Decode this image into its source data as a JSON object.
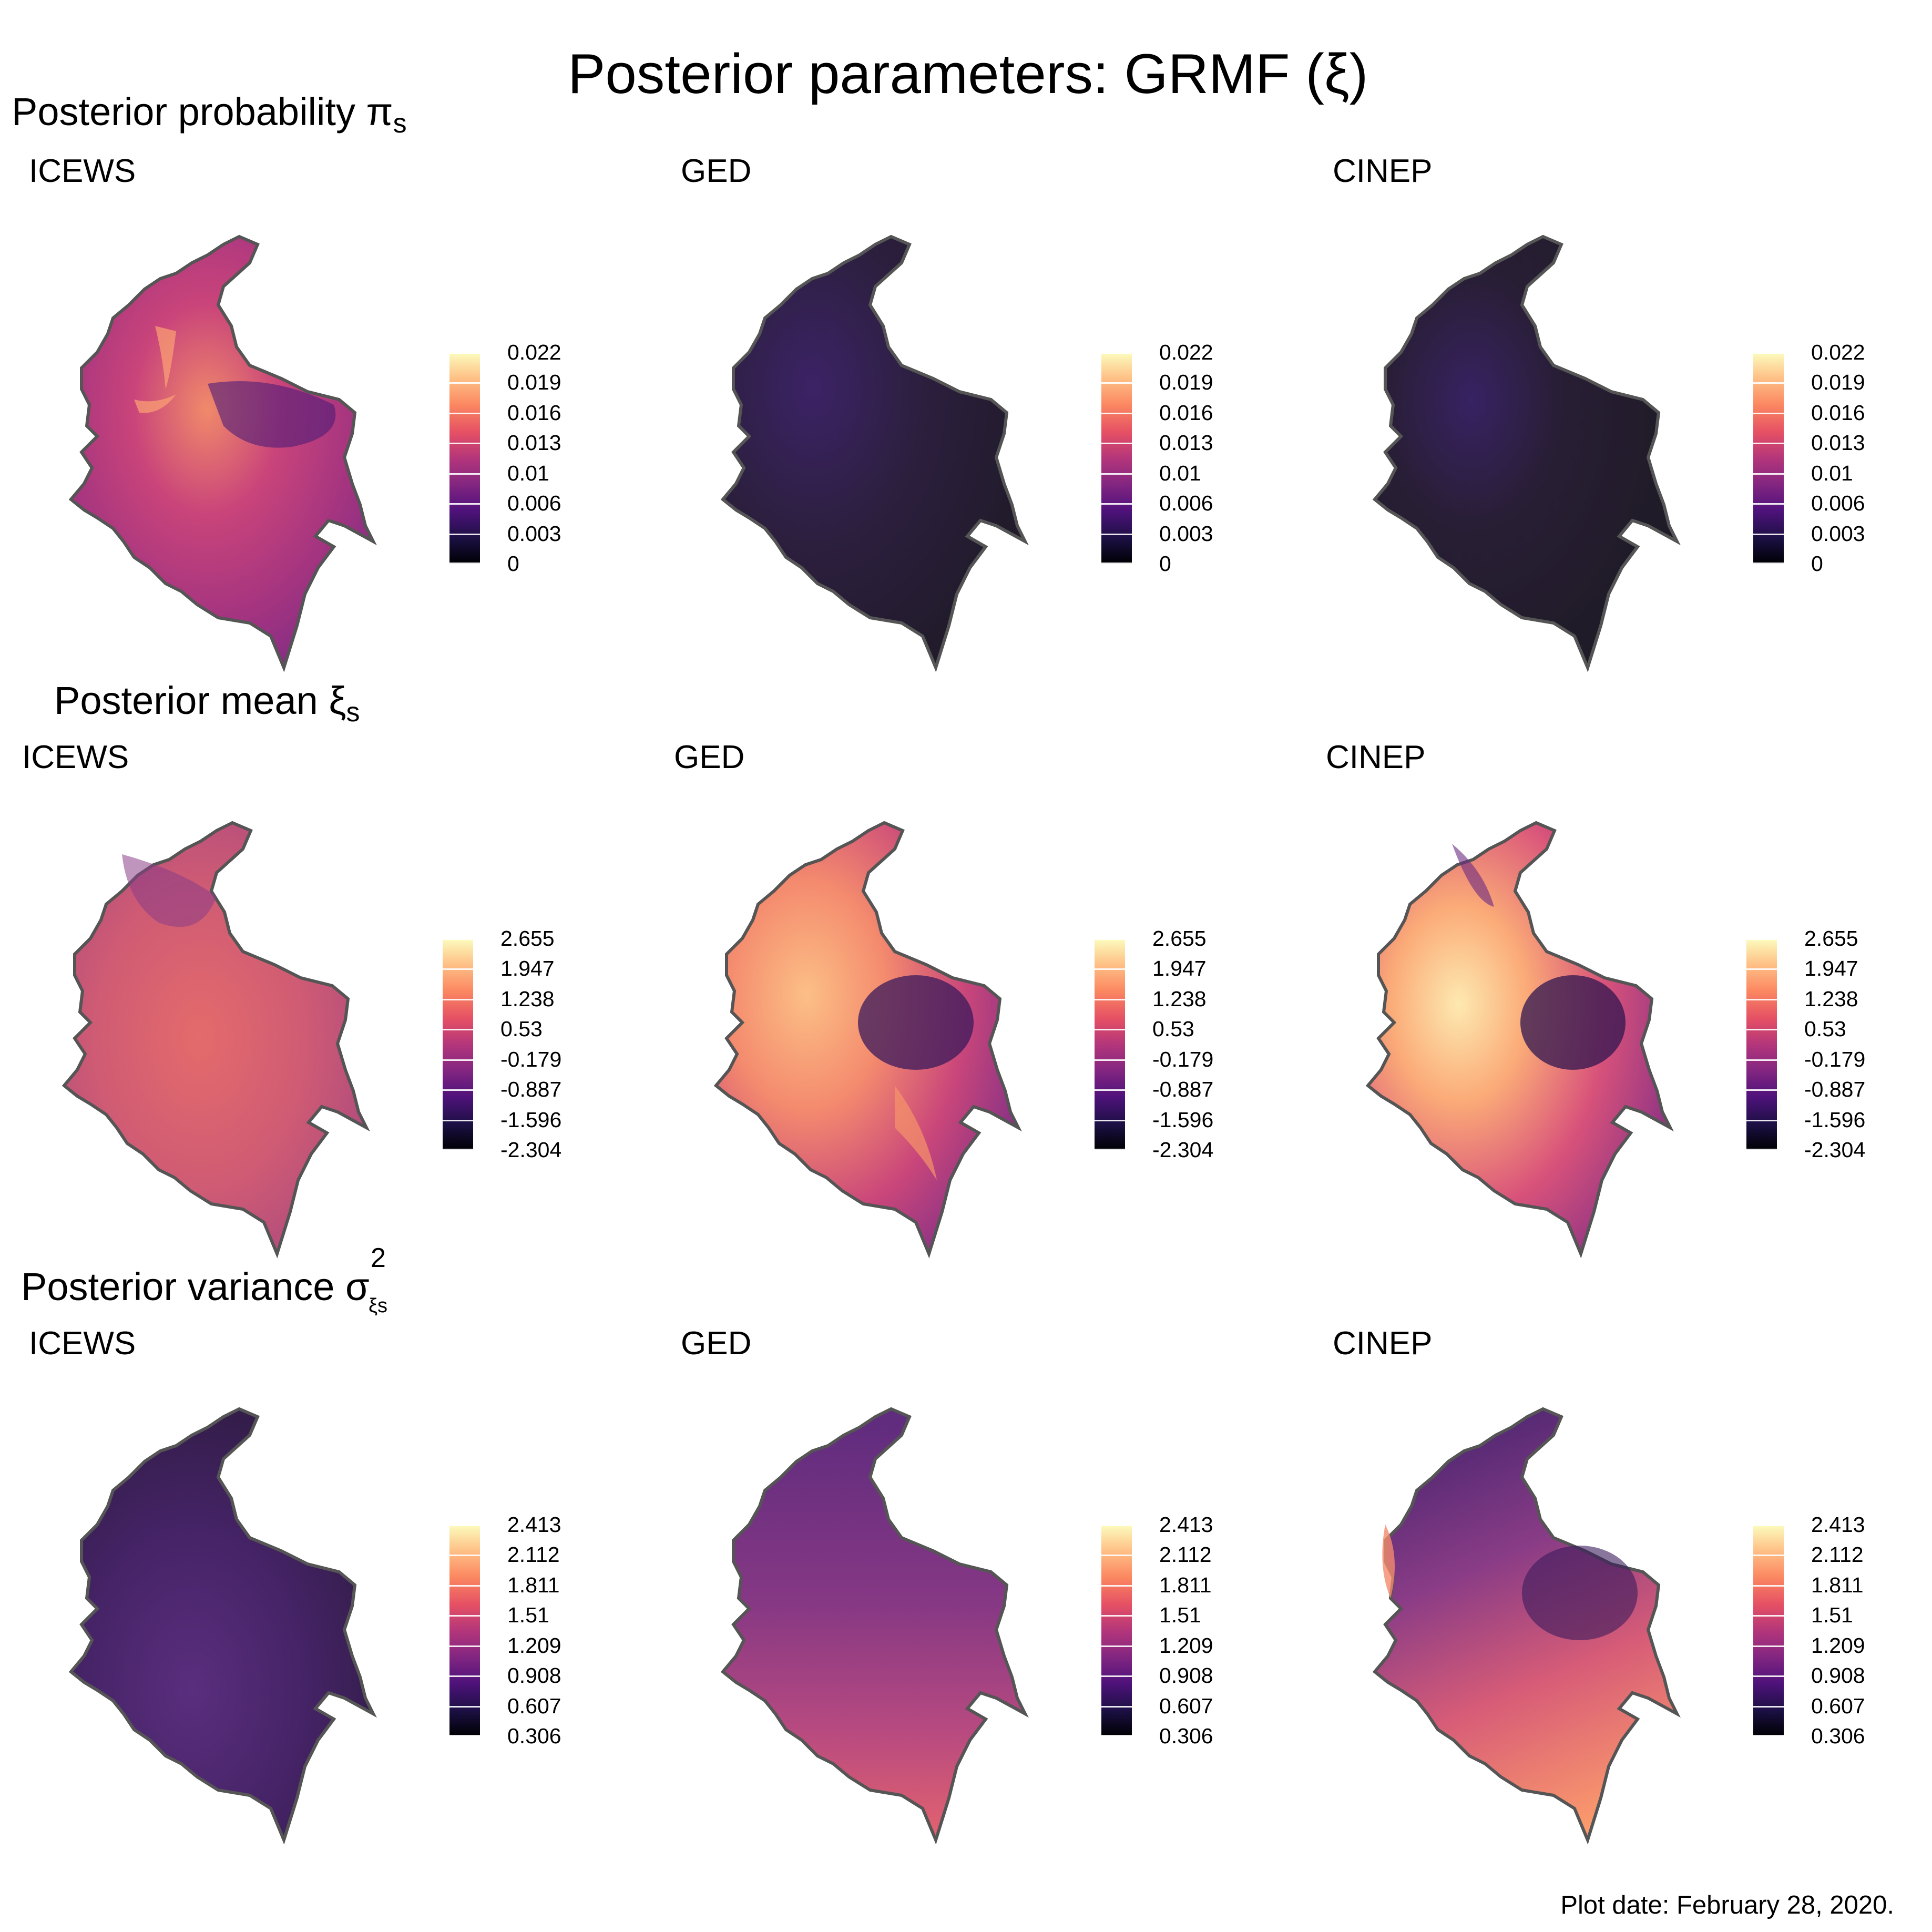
{
  "title": "Posterior parameters: GRMF (ξ)",
  "rows": [
    {
      "title_main": "Posterior probability",
      "title_symbol": "π",
      "title_sub": "s",
      "legend_ticks": [
        "0.022",
        "0.019",
        "0.016",
        "0.013",
        "0.01",
        "0.006",
        "0.003",
        "0"
      ],
      "panels": [
        {
          "label": "ICEWS",
          "shading": "medium-high, bright ridges in the north-center"
        },
        {
          "label": "GED",
          "shading": "very low, near black"
        },
        {
          "label": "CINEP",
          "shading": "very low, near black"
        }
      ]
    },
    {
      "title_main": "Posterior mean",
      "title_symbol": "ξ",
      "title_sub": "s",
      "legend_ticks": [
        "2.655",
        "1.947",
        "1.238",
        "0.53",
        "-0.179",
        "-0.887",
        "-1.596",
        "-2.304"
      ],
      "panels": [
        {
          "label": "ICEWS",
          "shading": "mid pink, fairly uniform"
        },
        {
          "label": "GED",
          "shading": "orange highs in the west-center, dark purple center-east"
        },
        {
          "label": "CINEP",
          "shading": "yellow highs in the west-center, dark purple center-east"
        }
      ]
    },
    {
      "title_main": "Posterior variance",
      "title_symbol": "σ",
      "title_sup": "2",
      "title_sub": "ξs",
      "legend_ticks": [
        "2.413",
        "2.112",
        "1.811",
        "1.51",
        "1.209",
        "0.908",
        "0.607",
        "0.306"
      ],
      "panels": [
        {
          "label": "ICEWS",
          "shading": "dark purple, low"
        },
        {
          "label": "GED",
          "shading": "purple, lighter in the south"
        },
        {
          "label": "CINEP",
          "shading": "purple to pink-orange, higher in the south"
        }
      ]
    }
  ],
  "colors": {
    "scale": [
      "#000004",
      "#1c1044",
      "#4f127b",
      "#812581",
      "#b5367a",
      "#e55064",
      "#fb8761",
      "#fec287",
      "#fcfdbf"
    ],
    "outline": "#555555"
  },
  "footer": "Plot date: February 28, 2020."
}
